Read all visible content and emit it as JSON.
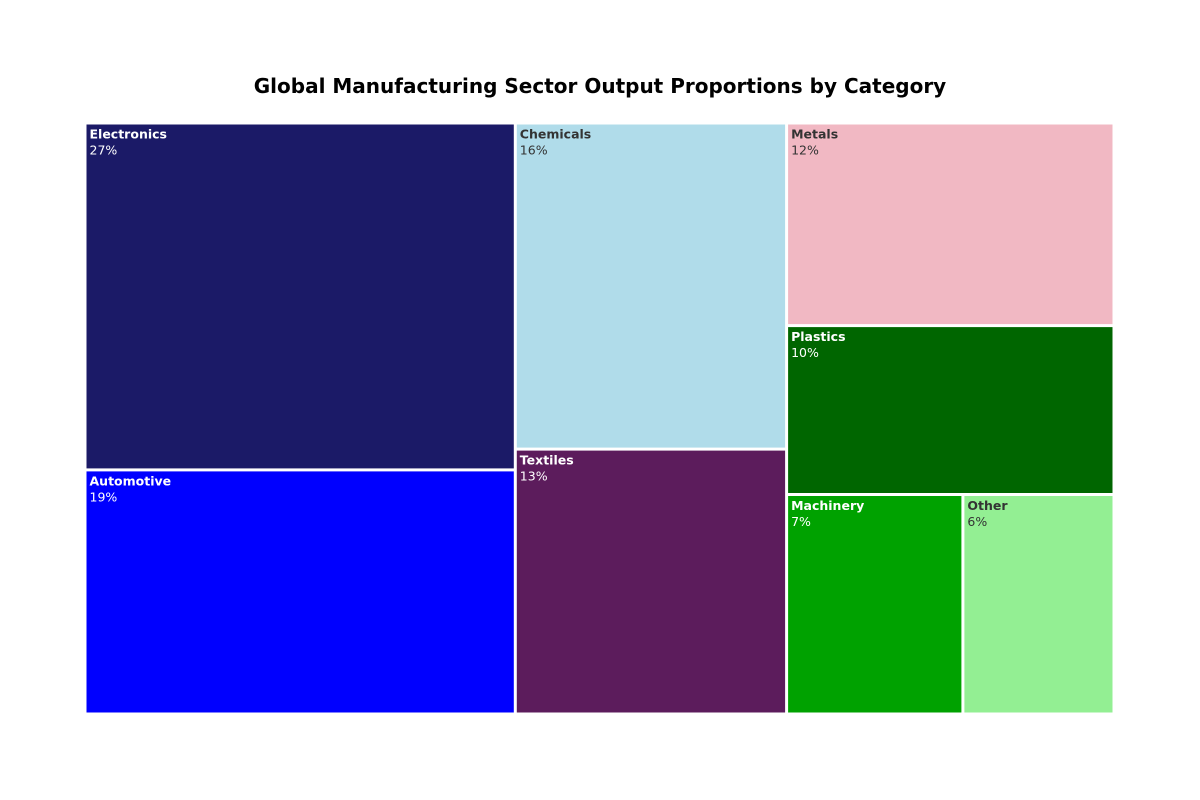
{
  "chart_data": {
    "type": "treemap",
    "title": "Global Manufacturing Sector Output Proportions by Category",
    "items": [
      {
        "label": "Electronics",
        "value": 27,
        "value_label": "27%",
        "color": "#1b1a67",
        "text_color": "#ffffff"
      },
      {
        "label": "Automotive",
        "value": 19,
        "value_label": "19%",
        "color": "#0000ff",
        "text_color": "#ffffff"
      },
      {
        "label": "Chemicals",
        "value": 16,
        "value_label": "16%",
        "color": "#b0dcea",
        "text_color": "#333333"
      },
      {
        "label": "Textiles",
        "value": 13,
        "value_label": "13%",
        "color": "#5c1c5c",
        "text_color": "#ffffff"
      },
      {
        "label": "Metals",
        "value": 12,
        "value_label": "12%",
        "color": "#f1b8c3",
        "text_color": "#333333"
      },
      {
        "label": "Plastics",
        "value": 10,
        "value_label": "10%",
        "color": "#006600",
        "text_color": "#ffffff"
      },
      {
        "label": "Machinery",
        "value": 7,
        "value_label": "7%",
        "color": "#00a200",
        "text_color": "#ffffff"
      },
      {
        "label": "Other",
        "value": 6,
        "value_label": "6%",
        "color": "#93ef93",
        "text_color": "#333333"
      }
    ]
  }
}
